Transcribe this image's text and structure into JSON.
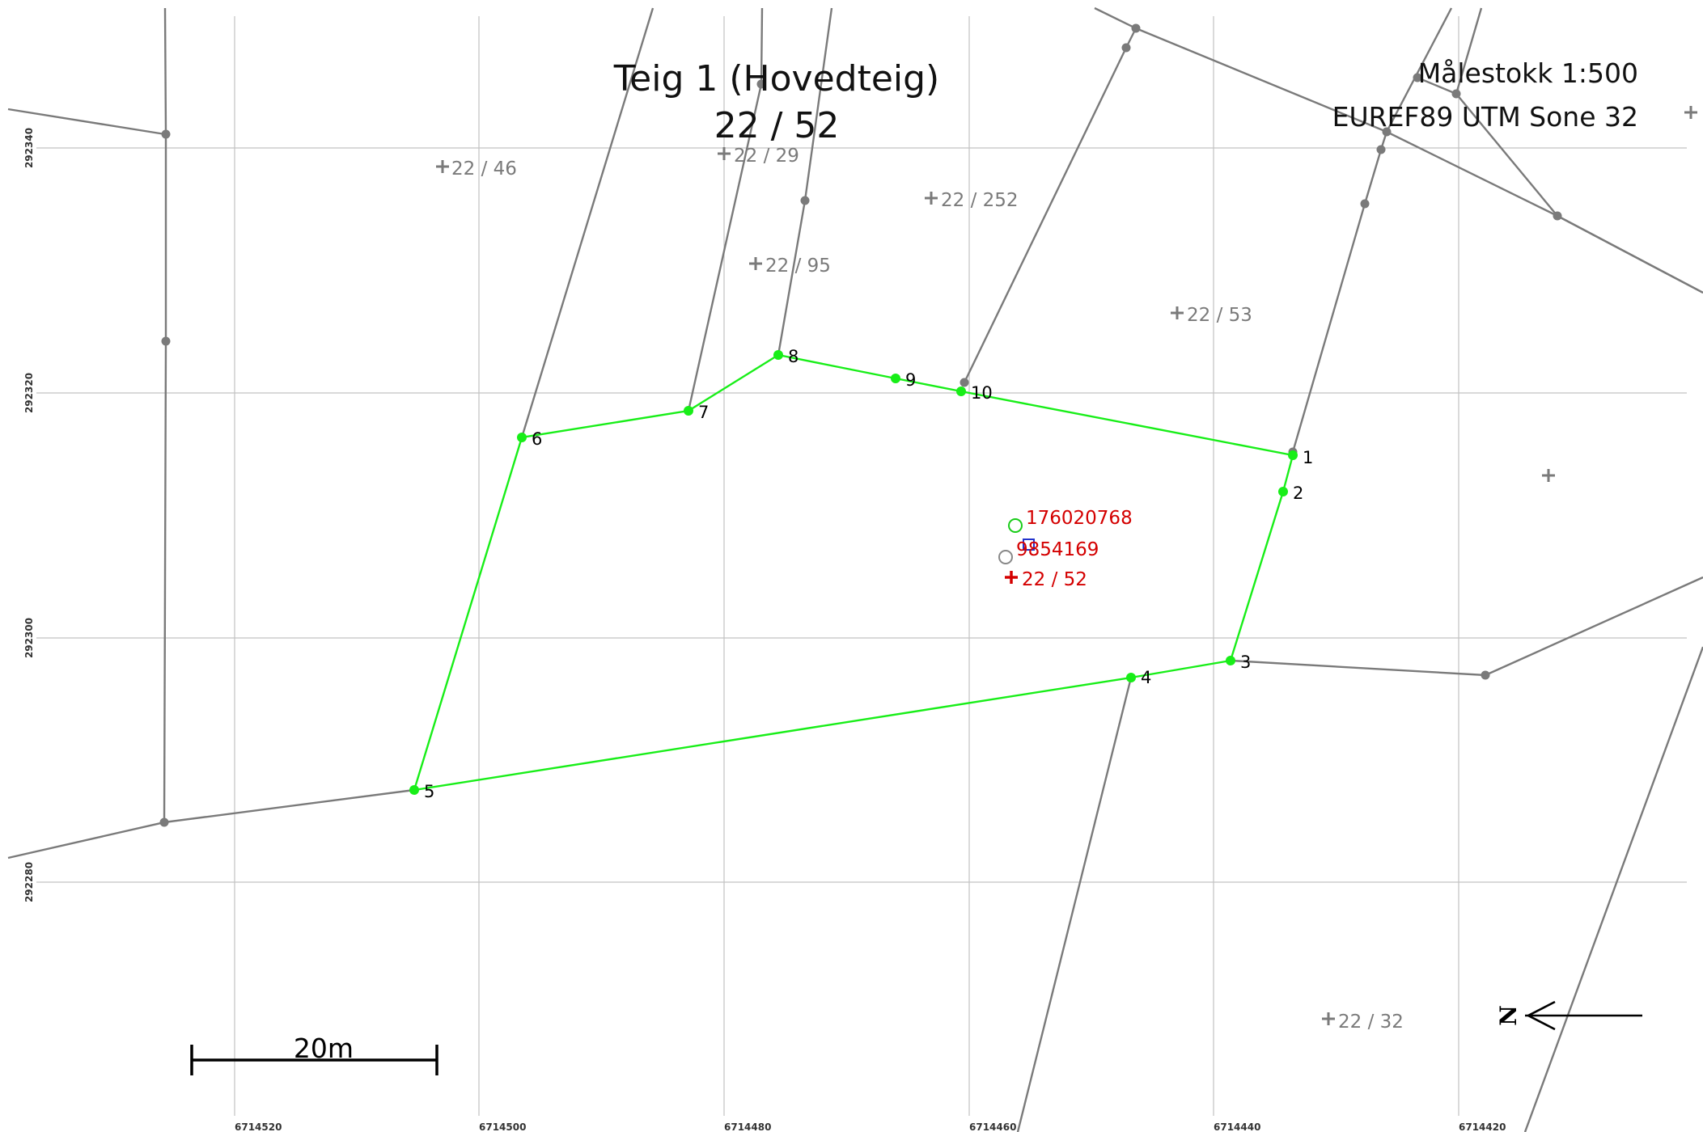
{
  "map": {
    "title_line1": "Teig 1 (Hovedteig)",
    "title_line2": "22 / 52",
    "scale_text": "Målestokk 1:500",
    "crs_text": "EUREF89 UTM Sone 32",
    "scalebar_label": "20m",
    "north_label": "N"
  },
  "grid": {
    "x_ticks": [
      "6714520",
      "6714500",
      "6714480",
      "6714460",
      "6714440",
      "6714420"
    ],
    "y_ticks": [
      "292340",
      "292320",
      "292300",
      "292280"
    ]
  },
  "parcel": {
    "id": "22 / 52",
    "points": [
      "1",
      "2",
      "3",
      "4",
      "5",
      "6",
      "7",
      "8",
      "9",
      "10"
    ]
  },
  "center_markers": {
    "building_id": "176020768",
    "address_id": "9854169",
    "parcel_label": "22 / 52"
  },
  "neighbors": [
    "22 / 46",
    "22 / 29",
    "22 / 252",
    "22 / 95",
    "22 / 53",
    "22 / 32"
  ],
  "colors": {
    "parcel_boundary": "#18ee18",
    "neighbor_boundary": "#7a7a7a",
    "grid": "#c2c2c2",
    "highlight_text": "#d40000"
  }
}
